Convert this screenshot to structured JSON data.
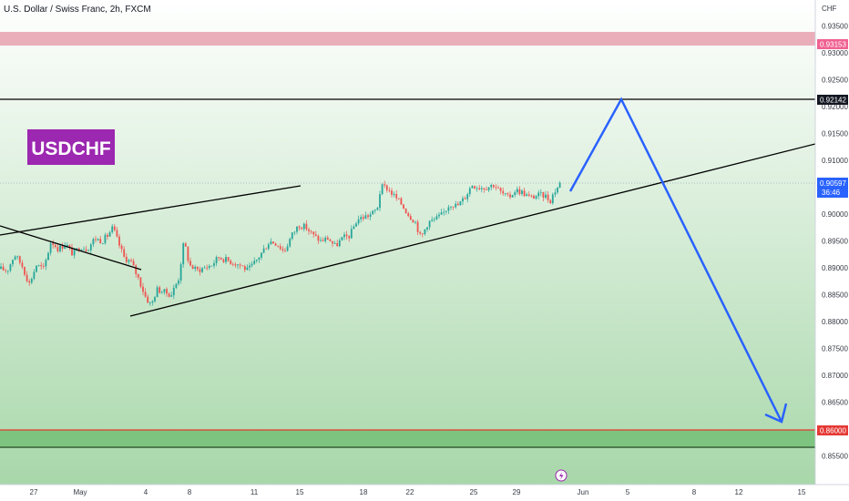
{
  "header": {
    "title": "U.S. Dollar / Swiss Franc, 2h, FXCM",
    "currency": "CHF"
  },
  "badge": {
    "text": "USDCHF",
    "color": "#9c27b0"
  },
  "price_labels": {
    "upper": "0.93153",
    "resistance": "0.92142",
    "last": "0.90597",
    "countdown": "36:46",
    "support": "0.86000"
  },
  "colors": {
    "up": "#26a69a",
    "down": "#ef5350",
    "projection": "#2962ff",
    "upper_zone": "#e8a0b0",
    "support_line": "#e53935",
    "last_price_bg": "#2962ff",
    "background_top": "#ffffff",
    "background_bottom": "#a5d6a7"
  },
  "chart_data": {
    "type": "candlestick",
    "title": "U.S. Dollar / Swiss Franc, 2h, FXCM",
    "symbol": "USDCHF",
    "ylim": [
      0.8505,
      0.9395
    ],
    "y_ticks": [
      "0.93500",
      "0.93000",
      "0.92500",
      "0.92000",
      "0.91500",
      "0.91000",
      "0.90500",
      "0.90000",
      "0.89500",
      "0.89000",
      "0.88500",
      "0.88000",
      "0.87500",
      "0.87000",
      "0.86500",
      "0.86000",
      "0.85500"
    ],
    "x_ticks": [
      "27",
      "May",
      "4",
      "8",
      "11",
      "15",
      "18",
      "22",
      "25",
      "29",
      "Jun",
      "5",
      "8",
      "12",
      "15"
    ],
    "price_path": [
      [
        0,
        0.8898
      ],
      [
        8,
        0.8895
      ],
      [
        16,
        0.8925
      ],
      [
        24,
        0.8905
      ],
      [
        32,
        0.887
      ],
      [
        40,
        0.8905
      ],
      [
        48,
        0.8898
      ],
      [
        56,
        0.895
      ],
      [
        64,
        0.8935
      ],
      [
        72,
        0.8945
      ],
      [
        80,
        0.8925
      ],
      [
        88,
        0.894
      ],
      [
        96,
        0.8935
      ],
      [
        104,
        0.8955
      ],
      [
        112,
        0.895
      ],
      [
        118,
        0.896
      ],
      [
        124,
        0.8975
      ],
      [
        128,
        0.8955
      ],
      [
        136,
        0.892
      ],
      [
        144,
        0.891
      ],
      [
        152,
        0.888
      ],
      [
        160,
        0.8845
      ],
      [
        166,
        0.883
      ],
      [
        172,
        0.886
      ],
      [
        180,
        0.8855
      ],
      [
        188,
        0.885
      ],
      [
        196,
        0.888
      ],
      [
        202,
        0.895
      ],
      [
        208,
        0.8905
      ],
      [
        216,
        0.8895
      ],
      [
        224,
        0.89
      ],
      [
        232,
        0.8905
      ],
      [
        240,
        0.892
      ],
      [
        248,
        0.8915
      ],
      [
        256,
        0.891
      ],
      [
        264,
        0.8905
      ],
      [
        272,
        0.8895
      ],
      [
        280,
        0.891
      ],
      [
        288,
        0.893
      ],
      [
        296,
        0.895
      ],
      [
        304,
        0.8945
      ],
      [
        312,
        0.893
      ],
      [
        320,
        0.896
      ],
      [
        328,
        0.898
      ],
      [
        336,
        0.8975
      ],
      [
        344,
        0.896
      ],
      [
        352,
        0.895
      ],
      [
        360,
        0.8955
      ],
      [
        368,
        0.894
      ],
      [
        376,
        0.8955
      ],
      [
        384,
        0.896
      ],
      [
        392,
        0.899
      ],
      [
        400,
        0.8995
      ],
      [
        408,
        0.9
      ],
      [
        414,
        0.901
      ],
      [
        418,
        0.905
      ],
      [
        424,
        0.905
      ],
      [
        432,
        0.9035
      ],
      [
        440,
        0.902
      ],
      [
        448,
        0.9
      ],
      [
        456,
        0.8985
      ],
      [
        462,
        0.8955
      ],
      [
        470,
        0.8985
      ],
      [
        478,
        0.899
      ],
      [
        486,
        0.9
      ],
      [
        494,
        0.902
      ],
      [
        502,
        0.9015
      ],
      [
        510,
        0.903
      ],
      [
        518,
        0.9055
      ],
      [
        526,
        0.905
      ],
      [
        534,
        0.905
      ],
      [
        542,
        0.9055
      ],
      [
        550,
        0.904
      ],
      [
        558,
        0.903
      ],
      [
        566,
        0.9045
      ],
      [
        574,
        0.904
      ],
      [
        582,
        0.903
      ],
      [
        590,
        0.9035
      ],
      [
        598,
        0.9035
      ],
      [
        604,
        0.9025
      ],
      [
        608,
        0.904
      ],
      [
        612,
        0.905
      ],
      [
        616,
        0.906
      ]
    ],
    "annotations": {
      "upper_zone": [
        0.93153,
        0.934
      ],
      "resistance": 0.92142,
      "support": 0.86,
      "support_zone": [
        0.857,
        0.86
      ],
      "wedge_upper": [
        [
          0,
          0.8965
        ],
        [
          330,
          0.9055
        ]
      ],
      "wedge_lower": [
        [
          143,
          0.8815
        ],
        [
          895,
          0.914
        ]
      ],
      "down_channel": [
        [
          0,
          0.898
        ],
        [
          155,
          0.89
        ]
      ],
      "projection": [
        [
          626,
          0.904
        ],
        [
          682,
          0.92142
        ],
        [
          858,
          0.8605
        ]
      ],
      "projection_arrowhead": [
        [
          840,
          0.863
        ],
        [
          858,
          0.8605
        ],
        [
          863,
          0.865
        ]
      ]
    }
  }
}
